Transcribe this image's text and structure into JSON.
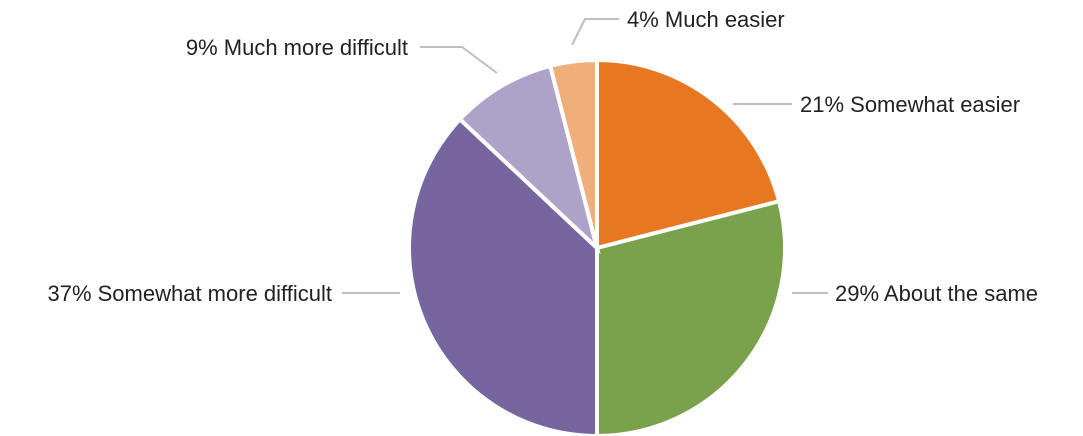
{
  "chart_data": {
    "type": "pie",
    "start_angle_deg": 0,
    "direction": "clockwise",
    "slices": [
      {
        "label": "21% Somewhat easier",
        "value": 21,
        "color": "#E87722"
      },
      {
        "label": "29% About the same",
        "value": 29,
        "color": "#7AA14C"
      },
      {
        "label": "37% Somewhat more difficult",
        "value": 37,
        "color": "#76659F"
      },
      {
        "label": "9% Much more difficult",
        "value": 9,
        "color": "#ADA3C8"
      },
      {
        "label": "4% Much easier",
        "value": 4,
        "color": "#F0AE7A"
      }
    ],
    "leader_line_color": "#BFBFBF",
    "legend": "none"
  }
}
